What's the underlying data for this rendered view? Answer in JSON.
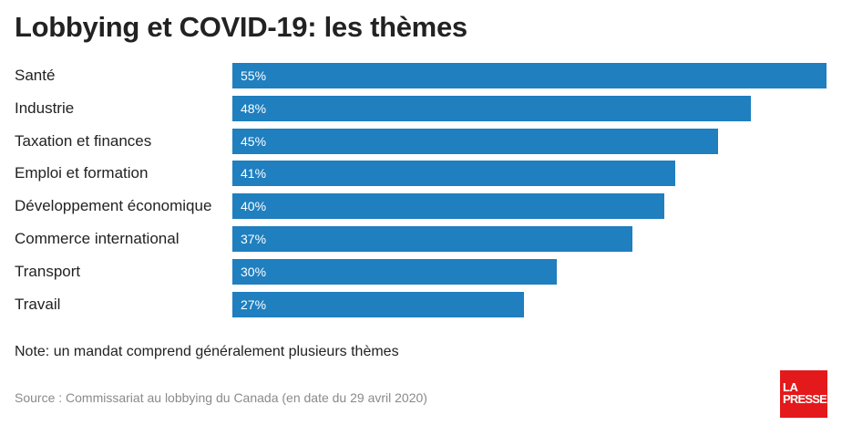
{
  "chart_data": {
    "type": "bar",
    "orientation": "horizontal",
    "title": "Lobbying et COVID-19: les thèmes",
    "categories": [
      "Santé",
      "Industrie",
      "Taxation et finances",
      "Emploi et formation",
      "Développement économique",
      "Commerce international",
      "Transport",
      "Travail"
    ],
    "values": [
      55,
      48,
      45,
      41,
      40,
      37,
      30,
      27
    ],
    "value_labels": [
      "55%",
      "48%",
      "45%",
      "41%",
      "40%",
      "37%",
      "30%",
      "27%"
    ],
    "unit": "%",
    "bar_color": "#1f7fbf",
    "grid": false,
    "legend": "none"
  },
  "note": "Note: un mandat comprend généralement plusieurs thèmes",
  "source": "Source : Commissariat au lobbying du Canada (en date du 29 avril 2020)",
  "logo": {
    "line1": "LA",
    "line2": "PRESSE",
    "color": "#e3191b"
  }
}
